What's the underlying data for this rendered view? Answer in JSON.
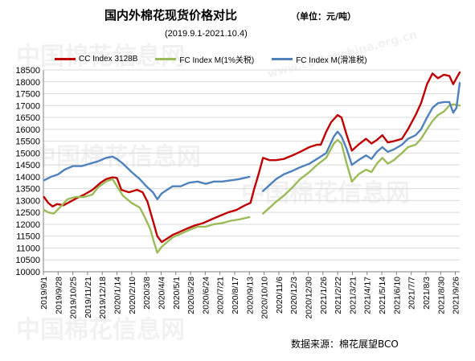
{
  "header": {
    "title": "国内外棉花现货价格对比",
    "unit": "（单位：元/吨）",
    "subtitle": "(2019.9.1-2021.10.4)"
  },
  "source": "数据来源：棉花展望BCO",
  "watermark": {
    "text": "中国棉花信息网",
    "url": "www.cottonchina.org.cn"
  },
  "colors": {
    "cc": "#c00000",
    "fc_1pct": "#9bbb59",
    "fc_sliding": "#4f81bd",
    "grid": "#d9d9d9",
    "axis": "#808080"
  },
  "chart_data": {
    "type": "line",
    "title": "国内外棉花现货价格对比",
    "unit": "（单位：元/吨）",
    "subtitle": "(2019.9.1-2021.10.4)",
    "ylim": [
      10000,
      18500
    ],
    "ytick_step": 500,
    "xlim": [
      "2019-09-01",
      "2021-10-04"
    ],
    "x_tick_labels": [
      "2019/9/1",
      "2019/9/28",
      "2019/10/25",
      "2019/11/21",
      "2019/12/18",
      "2020/1/14",
      "2020/2/10",
      "2020/3/8",
      "2020/4/4",
      "2020/5/1",
      "2020/5/28",
      "2020/6/24",
      "2020/7/21",
      "2020/8/17",
      "2020/9/13",
      "2020/10/10",
      "2020/11/6",
      "2020/12/3",
      "2020/12/30",
      "2021/1/26",
      "2021/2/22",
      "2021/3/21",
      "2021/4/17",
      "2021/5/14",
      "2021/6/10",
      "2021/7/7",
      "2021/8/3",
      "2021/8/30",
      "2021/9/26"
    ],
    "grid": true,
    "legend_position": "top",
    "series": [
      {
        "name": "CC Index 3128B",
        "color": "#c00000",
        "points": [
          [
            "2019-09-02",
            13150
          ],
          [
            "2019-09-10",
            12900
          ],
          [
            "2019-09-18",
            12750
          ],
          [
            "2019-09-26",
            12850
          ],
          [
            "2019-10-08",
            12800
          ],
          [
            "2019-10-20",
            12950
          ],
          [
            "2019-11-01",
            13100
          ],
          [
            "2019-11-15",
            13250
          ],
          [
            "2019-11-30",
            13450
          ],
          [
            "2019-12-15",
            13750
          ],
          [
            "2019-12-25",
            13900
          ],
          [
            "2020-01-06",
            13980
          ],
          [
            "2020-01-14",
            13950
          ],
          [
            "2020-01-22",
            13450
          ],
          [
            "2020-02-05",
            13350
          ],
          [
            "2020-02-20",
            13450
          ],
          [
            "2020-03-01",
            13350
          ],
          [
            "2020-03-10",
            12950
          ],
          [
            "2020-03-20",
            12150
          ],
          [
            "2020-03-28",
            11500
          ],
          [
            "2020-04-05",
            11250
          ],
          [
            "2020-04-15",
            11400
          ],
          [
            "2020-04-25",
            11550
          ],
          [
            "2020-05-05",
            11650
          ],
          [
            "2020-05-20",
            11800
          ],
          [
            "2020-06-05",
            11950
          ],
          [
            "2020-06-20",
            12050
          ],
          [
            "2020-07-05",
            12200
          ],
          [
            "2020-07-20",
            12350
          ],
          [
            "2020-08-05",
            12500
          ],
          [
            "2020-08-20",
            12600
          ],
          [
            "2020-09-05",
            12800
          ],
          [
            "2020-09-15",
            12900
          ],
          [
            "2020-09-22",
            13500
          ],
          [
            "2020-10-01",
            14200
          ],
          [
            "2020-10-08",
            14800
          ],
          [
            "2020-10-20",
            14700
          ],
          [
            "2020-11-01",
            14700
          ],
          [
            "2020-11-15",
            14750
          ],
          [
            "2020-12-01",
            14900
          ],
          [
            "2020-12-15",
            15050
          ],
          [
            "2021-01-01",
            15250
          ],
          [
            "2021-01-15",
            15350
          ],
          [
            "2021-01-22",
            15350
          ],
          [
            "2021-02-01",
            15900
          ],
          [
            "2021-02-10",
            16300
          ],
          [
            "2021-02-22",
            16600
          ],
          [
            "2021-03-01",
            16500
          ],
          [
            "2021-03-10",
            15800
          ],
          [
            "2021-03-20",
            15100
          ],
          [
            "2021-04-01",
            15350
          ],
          [
            "2021-04-15",
            15600
          ],
          [
            "2021-04-25",
            15400
          ],
          [
            "2021-05-05",
            15550
          ],
          [
            "2021-05-15",
            15750
          ],
          [
            "2021-05-25",
            15450
          ],
          [
            "2021-06-05",
            15500
          ],
          [
            "2021-06-20",
            15600
          ],
          [
            "2021-07-01",
            16000
          ],
          [
            "2021-07-15",
            16600
          ],
          [
            "2021-07-25",
            17100
          ],
          [
            "2021-08-05",
            17900
          ],
          [
            "2021-08-15",
            18350
          ],
          [
            "2021-08-25",
            18150
          ],
          [
            "2021-09-05",
            18300
          ],
          [
            "2021-09-15",
            18250
          ],
          [
            "2021-09-22",
            17900
          ],
          [
            "2021-09-28",
            18150
          ],
          [
            "2021-10-04",
            18400
          ]
        ]
      },
      {
        "name": "FC Index M(1%关税)",
        "color": "#9bbb59",
        "points": [
          [
            "2019-09-02",
            12600
          ],
          [
            "2019-09-10",
            12500
          ],
          [
            "2019-09-20",
            12450
          ],
          [
            "2019-10-01",
            12700
          ],
          [
            "2019-10-15",
            13050
          ],
          [
            "2019-10-30",
            13150
          ],
          [
            "2019-11-15",
            13150
          ],
          [
            "2019-11-30",
            13250
          ],
          [
            "2019-12-10",
            13550
          ],
          [
            "2019-12-25",
            13800
          ],
          [
            "2020-01-06",
            13900
          ],
          [
            "2020-01-14",
            13600
          ],
          [
            "2020-01-25",
            13200
          ],
          [
            "2020-02-10",
            12900
          ],
          [
            "2020-02-25",
            12700
          ],
          [
            "2020-03-05",
            12300
          ],
          [
            "2020-03-15",
            11800
          ],
          [
            "2020-03-22",
            11250
          ],
          [
            "2020-03-28",
            10800
          ],
          [
            "2020-04-05",
            11050
          ],
          [
            "2020-04-15",
            11250
          ],
          [
            "2020-04-25",
            11450
          ],
          [
            "2020-05-10",
            11600
          ],
          [
            "2020-05-25",
            11750
          ],
          [
            "2020-06-10",
            11900
          ],
          [
            "2020-06-25",
            11900
          ],
          [
            "2020-07-10",
            12000
          ],
          [
            "2020-07-25",
            12050
          ],
          [
            "2020-08-10",
            12150
          ],
          [
            "2020-08-25",
            12200
          ],
          [
            "2020-09-13",
            12300
          ]
        ]
      },
      {
        "name": "FC Index M(1%关税)",
        "color": "#9bbb59",
        "points": [
          [
            "2020-10-08",
            12450
          ],
          [
            "2020-10-20",
            12700
          ],
          [
            "2020-11-01",
            12950
          ],
          [
            "2020-11-15",
            13200
          ],
          [
            "2020-12-01",
            13550
          ],
          [
            "2020-12-15",
            13900
          ],
          [
            "2021-01-01",
            14200
          ],
          [
            "2021-01-15",
            14500
          ],
          [
            "2021-02-01",
            14800
          ],
          [
            "2021-02-15",
            15400
          ],
          [
            "2021-02-22",
            15550
          ],
          [
            "2021-03-01",
            15400
          ],
          [
            "2021-03-10",
            14600
          ],
          [
            "2021-03-20",
            13800
          ],
          [
            "2021-04-01",
            14100
          ],
          [
            "2021-04-15",
            14300
          ],
          [
            "2021-04-25",
            14200
          ],
          [
            "2021-05-05",
            14550
          ],
          [
            "2021-05-15",
            14800
          ],
          [
            "2021-05-25",
            14550
          ],
          [
            "2021-06-05",
            14700
          ],
          [
            "2021-06-20",
            15000
          ],
          [
            "2021-07-01",
            15250
          ],
          [
            "2021-07-15",
            15350
          ],
          [
            "2021-07-25",
            15600
          ],
          [
            "2021-08-05",
            16000
          ],
          [
            "2021-08-15",
            16350
          ],
          [
            "2021-08-25",
            16600
          ],
          [
            "2021-09-05",
            16750
          ],
          [
            "2021-09-15",
            17000
          ],
          [
            "2021-09-22",
            17050
          ],
          [
            "2021-10-04",
            17000
          ]
        ]
      },
      {
        "name": "FC Index M(滑准税)",
        "color": "#4f81bd",
        "points": [
          [
            "2019-09-02",
            13850
          ],
          [
            "2019-09-15",
            14000
          ],
          [
            "2019-09-28",
            14100
          ],
          [
            "2019-10-10",
            14300
          ],
          [
            "2019-10-25",
            14450
          ],
          [
            "2019-11-10",
            14450
          ],
          [
            "2019-11-25",
            14550
          ],
          [
            "2019-12-10",
            14650
          ],
          [
            "2019-12-25",
            14800
          ],
          [
            "2020-01-06",
            14850
          ],
          [
            "2020-01-14",
            14750
          ],
          [
            "2020-01-25",
            14550
          ],
          [
            "2020-02-10",
            14200
          ],
          [
            "2020-02-25",
            13900
          ],
          [
            "2020-03-08",
            13600
          ],
          [
            "2020-03-20",
            13350
          ],
          [
            "2020-03-28",
            13050
          ],
          [
            "2020-04-05",
            13300
          ],
          [
            "2020-04-15",
            13450
          ],
          [
            "2020-04-25",
            13600
          ],
          [
            "2020-05-10",
            13600
          ],
          [
            "2020-05-25",
            13750
          ],
          [
            "2020-06-10",
            13800
          ],
          [
            "2020-06-25",
            13700
          ],
          [
            "2020-07-10",
            13800
          ],
          [
            "2020-07-25",
            13800
          ],
          [
            "2020-08-10",
            13850
          ],
          [
            "2020-08-25",
            13900
          ],
          [
            "2020-09-13",
            14000
          ]
        ]
      },
      {
        "name": "FC Index M(滑准税)",
        "color": "#4f81bd",
        "points": [
          [
            "2020-10-08",
            13400
          ],
          [
            "2020-10-20",
            13650
          ],
          [
            "2020-11-01",
            13900
          ],
          [
            "2020-11-15",
            14100
          ],
          [
            "2020-12-01",
            14250
          ],
          [
            "2020-12-15",
            14400
          ],
          [
            "2021-01-01",
            14550
          ],
          [
            "2021-01-15",
            14750
          ],
          [
            "2021-02-01",
            15000
          ],
          [
            "2021-02-15",
            15700
          ],
          [
            "2021-02-22",
            15900
          ],
          [
            "2021-03-01",
            15700
          ],
          [
            "2021-03-10",
            15200
          ],
          [
            "2021-03-20",
            14500
          ],
          [
            "2021-04-01",
            14700
          ],
          [
            "2021-04-15",
            14900
          ],
          [
            "2021-04-25",
            14750
          ],
          [
            "2021-05-05",
            15050
          ],
          [
            "2021-05-15",
            15250
          ],
          [
            "2021-05-25",
            15050
          ],
          [
            "2021-06-05",
            15150
          ],
          [
            "2021-06-20",
            15350
          ],
          [
            "2021-07-01",
            15600
          ],
          [
            "2021-07-15",
            15750
          ],
          [
            "2021-07-25",
            16000
          ],
          [
            "2021-08-05",
            16500
          ],
          [
            "2021-08-15",
            16900
          ],
          [
            "2021-08-25",
            17100
          ],
          [
            "2021-09-05",
            17150
          ],
          [
            "2021-09-15",
            17150
          ],
          [
            "2021-09-22",
            16700
          ],
          [
            "2021-09-28",
            16900
          ],
          [
            "2021-10-04",
            17950
          ]
        ]
      }
    ]
  }
}
